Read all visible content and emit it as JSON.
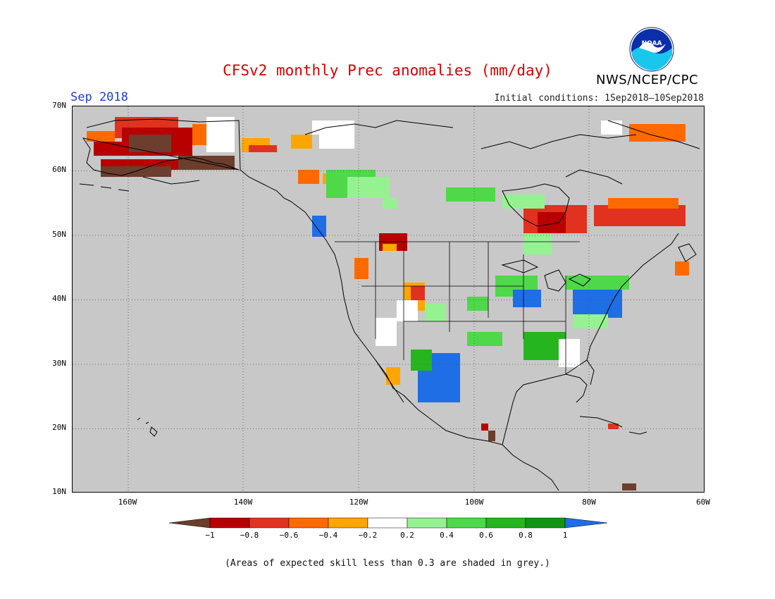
{
  "title": "CFSv2 monthly Prec anomalies (mm/day)",
  "agency": "NWS/NCEP/CPC",
  "logo_text": "NOAA",
  "month_label": "Sep 2018",
  "initial_conditions": "Initial conditions: 1Sep2018—10Sep2018",
  "footnote": "(Areas of expected skill less than 0.3 are shaded in grey.)",
  "lat_labels": [
    "70N",
    "60N",
    "50N",
    "40N",
    "30N",
    "20N",
    "10N"
  ],
  "lon_labels": [
    "160W",
    "140W",
    "120W",
    "100W",
    "80W",
    "60W"
  ],
  "colorbar": {
    "labels": [
      "−1",
      "−0.8",
      "−0.6",
      "−0.4",
      "−0.2",
      "0.2",
      "0.4",
      "0.6",
      "0.8",
      "1"
    ],
    "colors": [
      "#6b3e2e",
      "#b80000",
      "#e0321e",
      "#ff6a00",
      "#ffa500",
      "#ffffff",
      "#95f291",
      "#4fd84a",
      "#26b51f",
      "#129612",
      "#1e6ee6"
    ]
  },
  "colors": {
    "grey_mask": "#c8c8c8",
    "title": "#d40000",
    "month": "#1f3fd0"
  }
}
